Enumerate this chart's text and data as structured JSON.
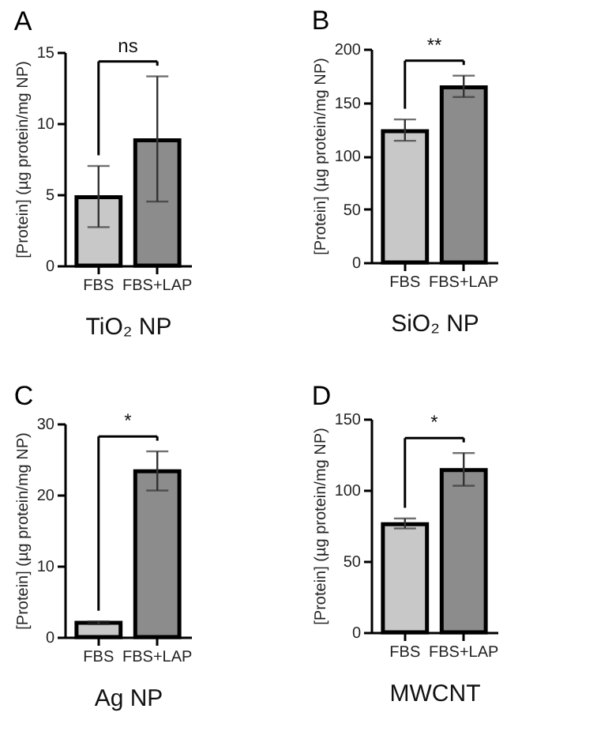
{
  "chart_data": [
    {
      "type": "bar",
      "title": "A",
      "xlabel": "TiO₂ NP",
      "ylabel": "[Protein] (µg protein/mg NP)",
      "categories": [
        "FBS",
        "FBS+LAP"
      ],
      "values": [
        4.8,
        8.8
      ],
      "colors": [
        "#c8c8c8",
        "#8c8c8c"
      ],
      "errors": [
        [
          2.7,
          7.0
        ],
        [
          4.5,
          13.3
        ]
      ],
      "ylim": [
        0,
        15
      ],
      "yticks": [
        0,
        5,
        10,
        15
      ],
      "annotations": [
        "ns"
      ]
    },
    {
      "type": "bar",
      "title": "B",
      "xlabel": "SiO₂ NP",
      "ylabel": "[Protein] (µg protein/mg NP)",
      "categories": [
        "FBS",
        "FBS+LAP"
      ],
      "values": [
        123,
        164
      ],
      "colors": [
        "#c8c8c8",
        "#8c8c8c"
      ],
      "errors": [
        [
          114,
          134
        ],
        [
          155,
          175
        ]
      ],
      "ylim": [
        0,
        200
      ],
      "yticks": [
        0,
        50,
        100,
        150,
        200
      ],
      "annotations": [
        "**"
      ]
    },
    {
      "type": "bar",
      "title": "C",
      "xlabel": "Ag NP",
      "ylabel": "[Protein] (µg protein/mg NP)",
      "categories": [
        "FBS",
        "FBS+LAP"
      ],
      "values": [
        2.0,
        23.3
      ],
      "colors": [
        "#c8c8c8",
        "#8c8c8c"
      ],
      "errors": [
        [
          1.8,
          2.2
        ],
        [
          20.6,
          26.1
        ]
      ],
      "ylim": [
        0,
        30
      ],
      "yticks": [
        0,
        10,
        20,
        30
      ],
      "annotations": [
        "*"
      ]
    },
    {
      "type": "bar",
      "title": "D",
      "xlabel": "MWCNT",
      "ylabel": "[Protein] (µg protein/mg NP)",
      "categories": [
        "FBS",
        "FBS+LAP"
      ],
      "values": [
        76,
        114
      ],
      "colors": [
        "#c8c8c8",
        "#8c8c8c"
      ],
      "errors": [
        [
          73,
          80
        ],
        [
          103,
          126
        ]
      ],
      "ylim": [
        0,
        150
      ],
      "yticks": [
        0,
        50,
        100,
        150
      ],
      "annotations": [
        "*"
      ]
    }
  ]
}
